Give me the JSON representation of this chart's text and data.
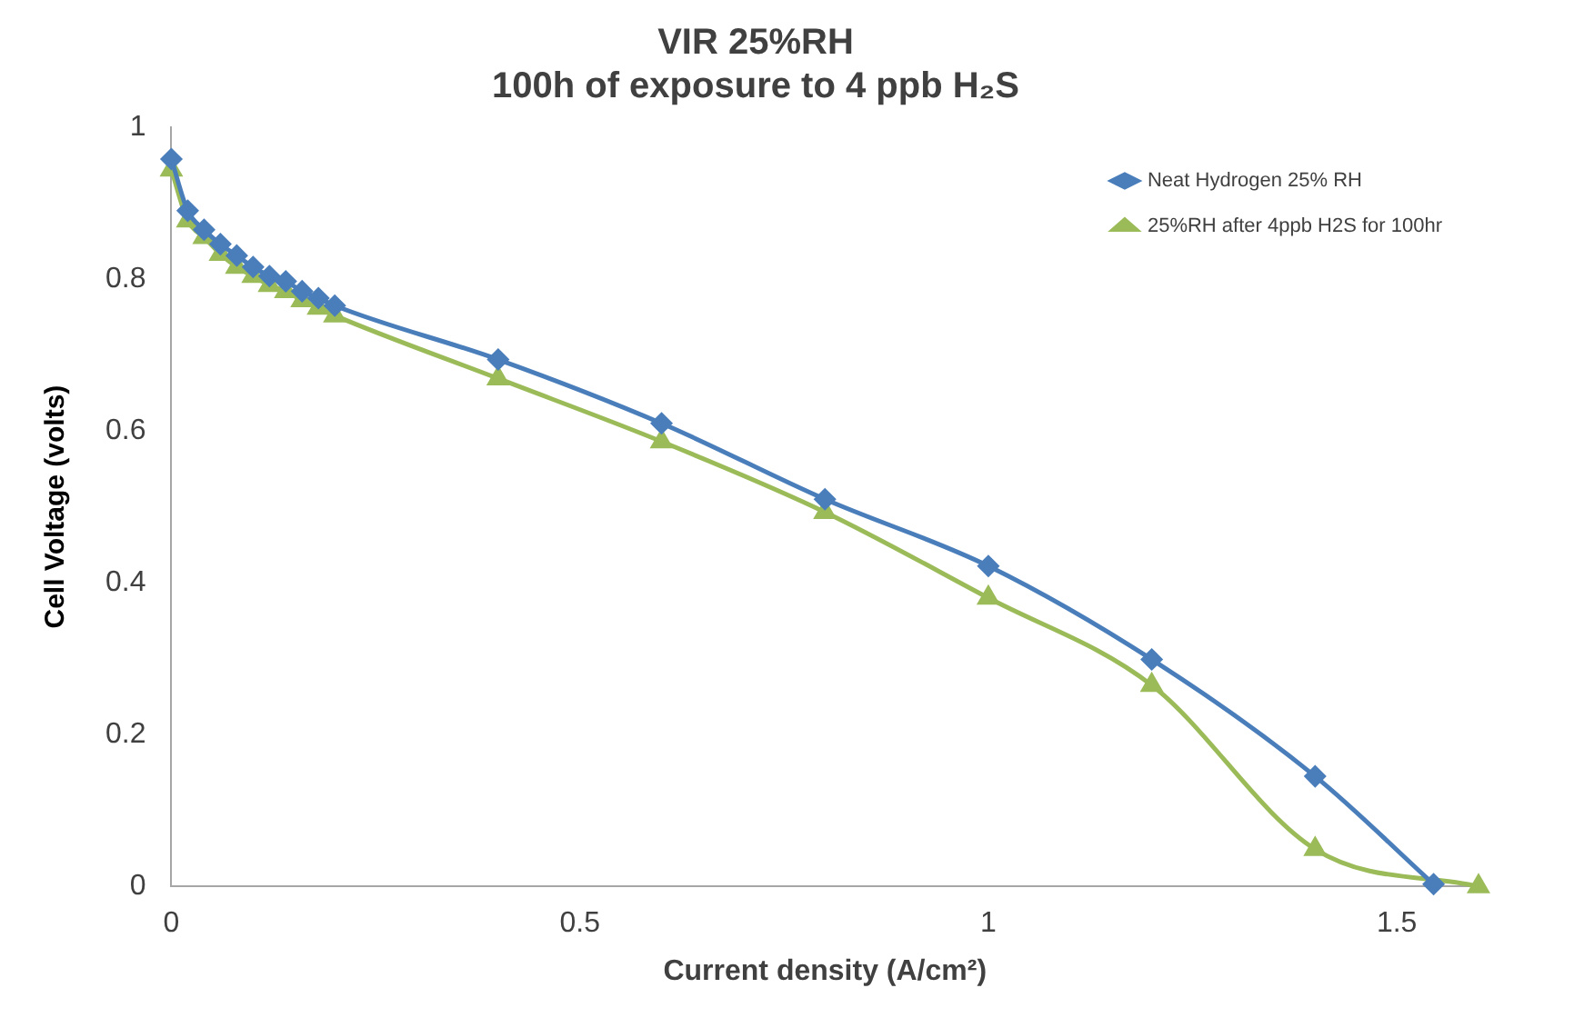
{
  "chart_data": {
    "type": "line",
    "title": [
      "VIR 25%RH",
      "100h of exposure to 4 ppb H₂S"
    ],
    "xlabel": "Current density (A/cm²)",
    "ylabel": "Cell Voltage (volts)",
    "xlim": [
      0,
      1.6
    ],
    "xticks": [
      0,
      0.5,
      1,
      1.5
    ],
    "ylim": [
      0,
      1
    ],
    "yticks": [
      0,
      0.2,
      0.4,
      0.6,
      0.8,
      1
    ],
    "grid": false,
    "legend": "top right",
    "series": [
      {
        "name": "Neat Hydrogen 25% RH",
        "color": "#4a7ebb",
        "marker": "diamond",
        "x": [
          0,
          0.02,
          0.04,
          0.06,
          0.08,
          0.1,
          0.12,
          0.14,
          0.16,
          0.18,
          0.2,
          0.4,
          0.6,
          0.8,
          1.0,
          1.2,
          1.4,
          1.545
        ],
        "values": [
          0.958,
          0.89,
          0.865,
          0.846,
          0.831,
          0.816,
          0.804,
          0.797,
          0.784,
          0.775,
          0.765,
          0.694,
          0.61,
          0.51,
          0.422,
          0.299,
          0.145,
          0.003
        ]
      },
      {
        "name": "25%RH after 4ppb H2S for 100hr",
        "color": "#9bbb59",
        "marker": "triangle",
        "x": [
          0,
          0.02,
          0.04,
          0.06,
          0.08,
          0.1,
          0.12,
          0.14,
          0.16,
          0.18,
          0.2,
          0.4,
          0.6,
          0.8,
          1.0,
          1.2,
          1.4,
          1.6
        ],
        "values": [
          0.944,
          0.877,
          0.855,
          0.833,
          0.816,
          0.804,
          0.792,
          0.784,
          0.772,
          0.762,
          0.752,
          0.669,
          0.586,
          0.493,
          0.38,
          0.265,
          0.049,
          0
        ]
      }
    ]
  }
}
